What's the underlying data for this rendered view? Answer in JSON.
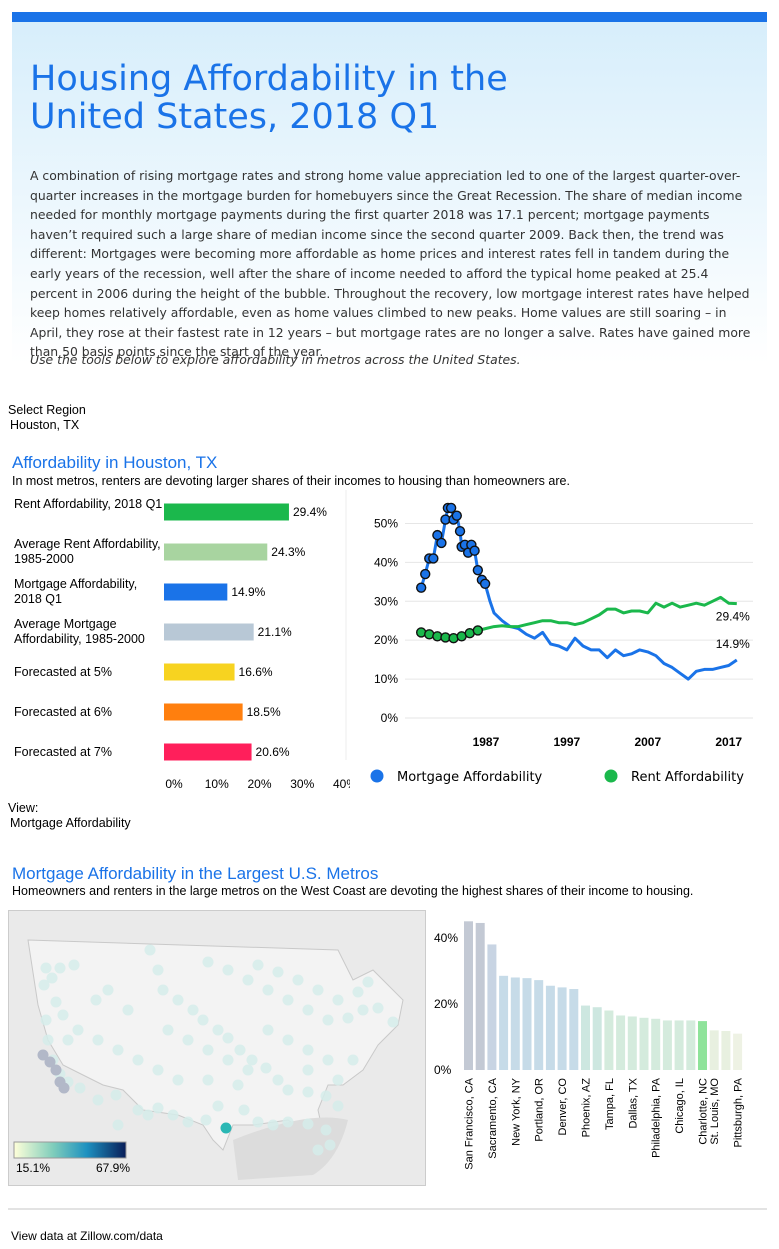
{
  "hero": {
    "title": "Housing Affordability in the United States, 2018 Q1",
    "body": "A combination of rising mortgage rates and strong home value appreciation led to one of the largest quarter-over-quarter increases in the mortgage burden for homebuyers since the Great Recession. The share of median income needed for monthly mortgage payments during the first quarter 2018 was 17.1 percent; mortgage payments haven’t required such a large share of median income since the second quarter 2009. Back then, the trend was different: Mortgages were becoming more affordable as home prices and interest rates fell in tandem during the early years of the recession, well after the share of income needed to afford the typical home peaked at 25.4 percent in 2006 during the height of the bubble. Throughout the recovery, low mortgage interest rates have helped keep homes relatively affordable, even as home values climbed to new peaks. Home values are still soaring – in April, they rose at their fastest rate in 12 years – but mortgage rates are no longer a salve. Rates have gained more than 50 basis points since the start of the year.",
    "note": "Use the tools below to explore affordability in metros across the United States."
  },
  "region_select": {
    "label": "Select Region",
    "value": "Houston, TX"
  },
  "section1": {
    "title": "Affordability in Houston, TX",
    "subtitle": "In most metros, renters are devoting larger shares of their incomes to housing than homeowners are."
  },
  "view_select": {
    "label": "View:",
    "value": "Mortgage Affordability"
  },
  "section2": {
    "title": "Mortgage Affordability in the Largest U.S. Metros",
    "subtitle": "Homeowners and renters in the large metros on the West Coast are devoting the highest shares of their income to housing."
  },
  "footer": {
    "text": "View data at Zillow.com/data"
  },
  "chart_data": [
    {
      "type": "bar",
      "orientation": "horizontal",
      "categories": [
        "Rent Affordability, 2018 Q1",
        "Average Rent Affordability, 1985-2000",
        "Mortgage Affordability, 2018 Q1",
        "Average Mortgage Affordability, 1985-2000",
        "Forecasted at 5%",
        "Forecasted at 6%",
        "Forecasted at 7%"
      ],
      "values": [
        29.4,
        24.3,
        14.9,
        21.1,
        16.6,
        18.5,
        20.6
      ],
      "value_labels": [
        "29.4%",
        "24.3%",
        "14.9%",
        "21.1%",
        "16.6%",
        "18.5%",
        "20.6%"
      ],
      "colors": [
        "#1bb84c",
        "#a8d4a0",
        "#1a73e8",
        "#b8c8d6",
        "#f7d320",
        "#ff7f0e",
        "#ff1f5b"
      ],
      "xlim": [
        0,
        40
      ],
      "xticks": [
        "0%",
        "10%",
        "20%",
        "30%",
        "40%"
      ]
    },
    {
      "type": "line",
      "ylim": [
        0,
        55
      ],
      "yticks": [
        "0%",
        "10%",
        "20%",
        "30%",
        "40%",
        "50%"
      ],
      "xticks": [
        "1987",
        "1997",
        "2007",
        "2017"
      ],
      "legend": "bottom",
      "series": [
        {
          "name": "Mortgage Affordability",
          "color": "#1a73e8",
          "end_label": "14.9%",
          "points": [
            [
              1979.0,
              33.5
            ],
            [
              1979.5,
              37.0
            ],
            [
              1980.0,
              41.0
            ],
            [
              1980.5,
              41.0
            ],
            [
              1981.0,
              47.0
            ],
            [
              1981.5,
              45.0
            ],
            [
              1982.0,
              51.0
            ],
            [
              1982.3,
              54.0
            ],
            [
              1982.7,
              54.0
            ],
            [
              1983.0,
              51.0
            ],
            [
              1983.4,
              52.0
            ],
            [
              1983.8,
              48.0
            ],
            [
              1984.0,
              44.0
            ],
            [
              1984.4,
              44.5
            ],
            [
              1984.8,
              42.5
            ],
            [
              1985.2,
              44.5
            ],
            [
              1985.6,
              43.0
            ],
            [
              1986.0,
              38.0
            ],
            [
              1986.5,
              35.5
            ],
            [
              1986.9,
              34.5
            ],
            [
              1987.5,
              30.0
            ],
            [
              1988.0,
              27.0
            ],
            [
              1989.0,
              25.0
            ],
            [
              1990.0,
              23.5
            ],
            [
              1991.0,
              23.0
            ],
            [
              1992.0,
              21.5
            ],
            [
              1993.0,
              20.5
            ],
            [
              1994.0,
              22.0
            ],
            [
              1995.0,
              19.0
            ],
            [
              1996.0,
              18.5
            ],
            [
              1997.0,
              17.5
            ],
            [
              1998.0,
              20.5
            ],
            [
              1999.0,
              18.5
            ],
            [
              2000.0,
              17.5
            ],
            [
              2001.0,
              17.5
            ],
            [
              2002.0,
              15.5
            ],
            [
              2003.0,
              17.5
            ],
            [
              2004.0,
              16.0
            ],
            [
              2005.0,
              16.5
            ],
            [
              2006.0,
              17.5
            ],
            [
              2007.0,
              17.0
            ],
            [
              2008.0,
              16.0
            ],
            [
              2009.0,
              14.0
            ],
            [
              2010.0,
              13.0
            ],
            [
              2011.0,
              11.5
            ],
            [
              2012.0,
              10.0
            ],
            [
              2013.0,
              12.0
            ],
            [
              2014.0,
              12.5
            ],
            [
              2015.0,
              12.5
            ],
            [
              2016.0,
              13.0
            ],
            [
              2017.0,
              13.5
            ],
            [
              2018.0,
              14.9
            ]
          ]
        },
        {
          "name": "Rent Affordability",
          "color": "#1bb84c",
          "end_label": "29.4%",
          "points": [
            [
              1979.0,
              22.0
            ],
            [
              1980.0,
              21.5
            ],
            [
              1981.0,
              21.0
            ],
            [
              1982.0,
              20.7
            ],
            [
              1983.0,
              20.5
            ],
            [
              1984.0,
              21.0
            ],
            [
              1985.0,
              21.8
            ],
            [
              1986.0,
              22.5
            ],
            [
              1987.0,
              23.0
            ],
            [
              1988.0,
              23.5
            ],
            [
              1989.0,
              23.7
            ],
            [
              1990.0,
              23.5
            ],
            [
              1991.0,
              23.5
            ],
            [
              1992.0,
              24.0
            ],
            [
              1993.0,
              24.5
            ],
            [
              1994.0,
              25.0
            ],
            [
              1995.0,
              25.0
            ],
            [
              1996.0,
              24.5
            ],
            [
              1997.0,
              24.5
            ],
            [
              1998.0,
              24.0
            ],
            [
              1999.0,
              24.5
            ],
            [
              2000.0,
              25.5
            ],
            [
              2001.0,
              26.5
            ],
            [
              2002.0,
              28.0
            ],
            [
              2003.0,
              28.0
            ],
            [
              2004.0,
              27.0
            ],
            [
              2005.0,
              27.5
            ],
            [
              2006.0,
              27.5
            ],
            [
              2007.0,
              27.0
            ],
            [
              2008.0,
              29.5
            ],
            [
              2009.0,
              28.5
            ],
            [
              2010.0,
              29.5
            ],
            [
              2011.0,
              28.5
            ],
            [
              2012.0,
              29.0
            ],
            [
              2013.0,
              29.5
            ],
            [
              2014.0,
              29.0
            ],
            [
              2015.0,
              30.0
            ],
            [
              2016.0,
              31.0
            ],
            [
              2017.0,
              29.5
            ],
            [
              2018.0,
              29.4
            ]
          ]
        }
      ]
    },
    {
      "type": "scatter",
      "subtype": "bubble-map",
      "legend_min": "15.1%",
      "legend_max": "67.9%",
      "highlight_color": "#2ab7b4"
    },
    {
      "type": "bar",
      "yticks": [
        "0%",
        "20%",
        "40%"
      ],
      "ylim": [
        0,
        46
      ],
      "values": [
        45.0,
        44.5,
        38.0,
        28.5,
        28.0,
        27.8,
        27.2,
        25.5,
        25.0,
        24.5,
        19.5,
        19.0,
        18.0,
        16.5,
        16.2,
        15.8,
        15.5,
        15.0,
        15.0,
        15.0,
        14.8,
        12.0,
        11.8,
        11.0
      ],
      "colors": [
        "#c3c9d4",
        "#c3c9d4",
        "#c8d4e3",
        "#c6dbe8",
        "#c6dbe8",
        "#c6dbe8",
        "#c6dbe8",
        "#c6dbe8",
        "#c6dbe8",
        "#c6dbe8",
        "#cde7e0",
        "#cde7e0",
        "#d4ebdd",
        "#d4ebdd",
        "#d4ebdd",
        "#d4ebdd",
        "#d4ebdd",
        "#d4ebdd",
        "#d4ebdd",
        "#d4ebdd",
        "#8ee39a",
        "#e8f0e0",
        "#e8f0e0",
        "#eef2e4"
      ],
      "tick_labels": [
        {
          "index": 0,
          "label": "San Francisco, CA"
        },
        {
          "index": 2,
          "label": "Sacramento, CA"
        },
        {
          "index": 4,
          "label": "New York, NY"
        },
        {
          "index": 6,
          "label": "Portland, OR"
        },
        {
          "index": 8,
          "label": "Denver, CO"
        },
        {
          "index": 10,
          "label": "Phoenix, AZ"
        },
        {
          "index": 12,
          "label": "Tampa, FL"
        },
        {
          "index": 14,
          "label": "Dallas, TX"
        },
        {
          "index": 16,
          "label": "Philadelphia, PA"
        },
        {
          "index": 18,
          "label": "Chicago, IL"
        },
        {
          "index": 20,
          "label": "Charlotte, NC"
        },
        {
          "index": 21,
          "label": "St. Louis, MO"
        },
        {
          "index": 23,
          "label": "Pittsburgh, PA"
        }
      ]
    }
  ]
}
